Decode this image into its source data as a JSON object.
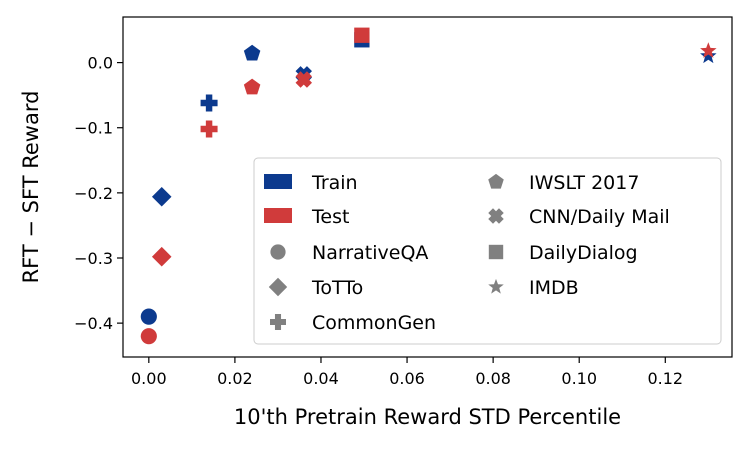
{
  "chart_data": {
    "type": "scatter",
    "title": "",
    "xlabel": "10'th Pretrain Reward STD Percentile",
    "ylabel": "RFT − SFT Reward",
    "xlim": [
      -0.006,
      0.1355
    ],
    "ylim": [
      -0.452,
      0.07
    ],
    "x_ticks": [
      0.0,
      0.02,
      0.04,
      0.06,
      0.08,
      0.1,
      0.12
    ],
    "x_tick_labels": [
      "0.00",
      "0.02",
      "0.04",
      "0.06",
      "0.08",
      "0.10",
      "0.12"
    ],
    "y_ticks": [
      0.0,
      -0.1,
      -0.2,
      -0.3,
      -0.4
    ],
    "y_tick_labels": [
      "0.0",
      "−0.1",
      "−0.2",
      "−0.3",
      "−0.4"
    ],
    "grid": false,
    "legend_position": "lower-right",
    "colors": {
      "Train": "#0c3a8e",
      "Test": "#d03b3b",
      "neutral": "#808080"
    },
    "splits": [
      {
        "name": "Train",
        "color": "#0c3a8e"
      },
      {
        "name": "Test",
        "color": "#d03b3b"
      }
    ],
    "datasets": [
      {
        "name": "NarrativeQA",
        "marker": "circle",
        "x": 0.0,
        "train": -0.39,
        "test": -0.42
      },
      {
        "name": "ToTTo",
        "marker": "diamond",
        "x": 0.003,
        "train": -0.206,
        "test": -0.298
      },
      {
        "name": "CommonGen",
        "marker": "plus",
        "x": 0.014,
        "train": -0.062,
        "test": -0.102
      },
      {
        "name": "IWSLT 2017",
        "marker": "pentagon",
        "x": 0.024,
        "train": 0.014,
        "test": -0.038
      },
      {
        "name": "CNN/Daily Mail",
        "marker": "x",
        "x": 0.036,
        "train": -0.018,
        "test": -0.026
      },
      {
        "name": "DailyDialog",
        "marker": "square",
        "x": 0.0495,
        "train": 0.035,
        "test": 0.042
      },
      {
        "name": "IMDB",
        "marker": "star",
        "x": 0.13,
        "train": 0.01,
        "test": 0.018
      }
    ],
    "legend_column1": [
      "Train",
      "Test",
      "NarrativeQA",
      "ToTTo",
      "CommonGen"
    ],
    "legend_column2": [
      "IWSLT 2017",
      "CNN/Daily Mail",
      "DailyDialog",
      "IMDB"
    ]
  }
}
